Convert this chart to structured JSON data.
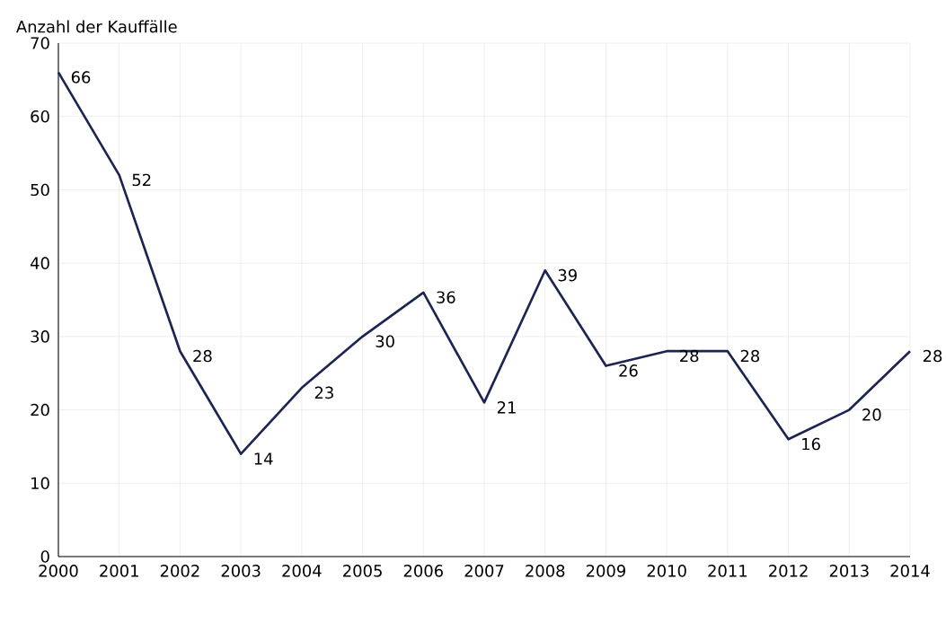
{
  "chart_data": {
    "type": "line",
    "ylabel": "Anzahl der Kauffälle",
    "x": [
      2000,
      2001,
      2002,
      2003,
      2004,
      2005,
      2006,
      2007,
      2008,
      2009,
      2010,
      2011,
      2012,
      2013,
      2014
    ],
    "values": [
      66,
      52,
      28,
      14,
      23,
      30,
      36,
      21,
      39,
      26,
      28,
      28,
      16,
      20,
      28
    ],
    "color": "#1c2452",
    "xlim": [
      2000,
      2014
    ],
    "xticks": [
      2000,
      2001,
      2002,
      2003,
      2004,
      2005,
      2006,
      2007,
      2008,
      2009,
      2010,
      2011,
      2012,
      2013,
      2014
    ],
    "ylim": [
      0,
      70
    ],
    "yticks": [
      0,
      10,
      20,
      30,
      40,
      50,
      60,
      70
    ],
    "grid": true,
    "data_labels": true
  }
}
